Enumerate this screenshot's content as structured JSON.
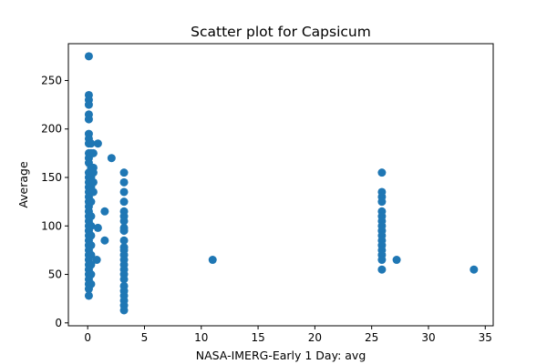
{
  "chart_data": {
    "type": "scatter",
    "title": "Scatter plot for Capsicum",
    "xlabel": "NASA-IMERG-Early 1 Day: avg",
    "ylabel": "Average",
    "xlim": [
      -1.7,
      35.7
    ],
    "ylim": [
      -3,
      288
    ],
    "xticks": [
      0,
      5,
      10,
      15,
      20,
      25,
      30,
      35
    ],
    "yticks": [
      0,
      50,
      100,
      150,
      200,
      250
    ],
    "grid": false,
    "marker_color": "#1f77b4",
    "series": [
      {
        "points": [
          [
            0.1,
            275
          ],
          [
            0.1,
            235
          ],
          [
            0.1,
            230
          ],
          [
            0.1,
            225
          ],
          [
            0.1,
            215
          ],
          [
            0.1,
            210
          ],
          [
            0.1,
            195
          ],
          [
            0.1,
            190
          ],
          [
            0.1,
            185
          ],
          [
            0.1,
            175
          ],
          [
            0.1,
            170
          ],
          [
            0.1,
            165
          ],
          [
            0.1,
            155
          ],
          [
            0.1,
            150
          ],
          [
            0.1,
            145
          ],
          [
            0.1,
            140
          ],
          [
            0.1,
            135
          ],
          [
            0.1,
            130
          ],
          [
            0.1,
            125
          ],
          [
            0.1,
            120
          ],
          [
            0.1,
            115
          ],
          [
            0.1,
            110
          ],
          [
            0.1,
            105
          ],
          [
            0.1,
            100
          ],
          [
            0.1,
            95
          ],
          [
            0.1,
            90
          ],
          [
            0.1,
            85
          ],
          [
            0.1,
            80
          ],
          [
            0.1,
            75
          ],
          [
            0.1,
            70
          ],
          [
            0.1,
            65
          ],
          [
            0.1,
            60
          ],
          [
            0.1,
            55
          ],
          [
            0.1,
            50
          ],
          [
            0.1,
            45
          ],
          [
            0.1,
            40
          ],
          [
            0.1,
            35
          ],
          [
            0.1,
            28
          ],
          [
            0.3,
            185
          ],
          [
            0.3,
            175
          ],
          [
            0.3,
            160
          ],
          [
            0.3,
            150
          ],
          [
            0.3,
            140
          ],
          [
            0.3,
            125
          ],
          [
            0.3,
            110
          ],
          [
            0.3,
            100
          ],
          [
            0.3,
            90
          ],
          [
            0.3,
            80
          ],
          [
            0.3,
            70
          ],
          [
            0.3,
            60
          ],
          [
            0.3,
            50
          ],
          [
            0.3,
            40
          ],
          [
            0.5,
            175
          ],
          [
            0.5,
            160
          ],
          [
            0.5,
            155
          ],
          [
            0.5,
            145
          ],
          [
            0.5,
            135
          ],
          [
            0.8,
            65
          ],
          [
            0.9,
            185
          ],
          [
            0.9,
            98
          ],
          [
            1.5,
            115
          ],
          [
            1.5,
            85
          ],
          [
            2.1,
            170
          ],
          [
            3.2,
            155
          ],
          [
            3.2,
            145
          ],
          [
            3.2,
            135
          ],
          [
            3.2,
            125
          ],
          [
            3.2,
            115
          ],
          [
            3.2,
            110
          ],
          [
            3.2,
            105
          ],
          [
            3.2,
            98
          ],
          [
            3.2,
            95
          ],
          [
            3.2,
            85
          ],
          [
            3.2,
            78
          ],
          [
            3.2,
            75
          ],
          [
            3.2,
            70
          ],
          [
            3.2,
            65
          ],
          [
            3.2,
            60
          ],
          [
            3.2,
            55
          ],
          [
            3.2,
            50
          ],
          [
            3.2,
            45
          ],
          [
            3.2,
            38
          ],
          [
            3.2,
            33
          ],
          [
            3.2,
            28
          ],
          [
            3.2,
            23
          ],
          [
            3.2,
            18
          ],
          [
            3.2,
            13
          ],
          [
            11.0,
            65
          ],
          [
            25.9,
            155
          ],
          [
            25.9,
            135
          ],
          [
            25.9,
            130
          ],
          [
            25.9,
            125
          ],
          [
            25.9,
            115
          ],
          [
            25.9,
            110
          ],
          [
            25.9,
            105
          ],
          [
            25.9,
            100
          ],
          [
            25.9,
            95
          ],
          [
            25.9,
            90
          ],
          [
            25.9,
            85
          ],
          [
            25.9,
            80
          ],
          [
            25.9,
            75
          ],
          [
            25.9,
            70
          ],
          [
            25.9,
            65
          ],
          [
            25.9,
            55
          ],
          [
            27.2,
            65
          ],
          [
            34.0,
            55
          ]
        ]
      }
    ]
  }
}
